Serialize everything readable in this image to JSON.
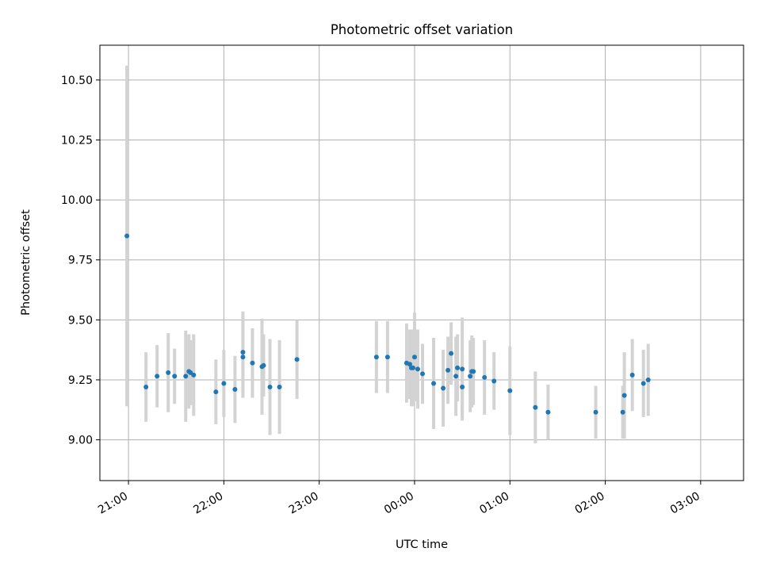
{
  "chart_data": {
    "type": "scatter",
    "title": "Photometric offset variation",
    "xlabel": "UTC time",
    "ylabel": "Photometric offset",
    "x_unit": "minutes",
    "x_reference": "21:00",
    "xlim": [
      -18,
      387
    ],
    "ylim": [
      8.83,
      10.645
    ],
    "xticks": [
      0,
      60,
      120,
      180,
      240,
      300,
      360
    ],
    "xtick_labels": [
      "21:00",
      "22:00",
      "23:00",
      "00:00",
      "01:00",
      "02:00",
      "03:00"
    ],
    "yticks": [
      9.0,
      9.25,
      9.5,
      9.75,
      10.0,
      10.25,
      10.5
    ],
    "ytick_labels": [
      "9.00",
      "9.25",
      "9.50",
      "9.75",
      "10.00",
      "10.25",
      "10.50"
    ],
    "grid": true,
    "colors": {
      "marker": "#1f77b4",
      "errorbar": "#d3d3d3",
      "grid": "#b0b0b0"
    },
    "series": [
      {
        "x": [
          -1,
          11,
          18,
          25,
          29,
          36,
          38,
          39,
          41,
          55,
          60,
          67,
          72,
          72,
          78,
          84,
          85,
          89,
          95,
          106,
          156,
          163,
          175,
          177,
          178,
          179,
          180,
          182,
          185,
          192,
          198,
          201,
          203,
          206,
          207,
          210,
          210,
          215,
          216,
          217,
          224,
          230,
          240,
          256,
          264,
          294,
          311,
          312,
          317,
          324,
          327
        ],
        "y": [
          9.85,
          9.22,
          9.265,
          9.28,
          9.265,
          9.265,
          9.285,
          9.28,
          9.27,
          9.2,
          9.235,
          9.21,
          9.365,
          9.345,
          9.32,
          9.305,
          9.31,
          9.22,
          9.22,
          9.335,
          9.345,
          9.345,
          9.32,
          9.315,
          9.3,
          9.3,
          9.345,
          9.295,
          9.275,
          9.235,
          9.215,
          9.29,
          9.36,
          9.265,
          9.3,
          9.295,
          9.22,
          9.265,
          9.285,
          9.285,
          9.26,
          9.245,
          9.205,
          9.135,
          9.115,
          9.115,
          9.115,
          9.185,
          9.27,
          9.235,
          9.25
        ],
        "err": [
          0.71,
          0.145,
          0.13,
          0.165,
          0.115,
          0.19,
          0.155,
          0.135,
          0.17,
          0.135,
          0.14,
          0.14,
          0.17,
          0.17,
          0.145,
          0.2,
          0.13,
          0.2,
          0.195,
          0.165,
          0.15,
          0.15,
          0.165,
          0.145,
          0.16,
          0.16,
          0.185,
          0.165,
          0.125,
          0.19,
          0.16,
          0.14,
          0.13,
          0.165,
          0.14,
          0.215,
          0.13,
          0.15,
          0.15,
          0.14,
          0.155,
          0.12,
          0.185,
          0.15,
          0.115,
          0.11,
          0.11,
          0.18,
          0.15,
          0.14,
          0.15
        ]
      }
    ]
  }
}
